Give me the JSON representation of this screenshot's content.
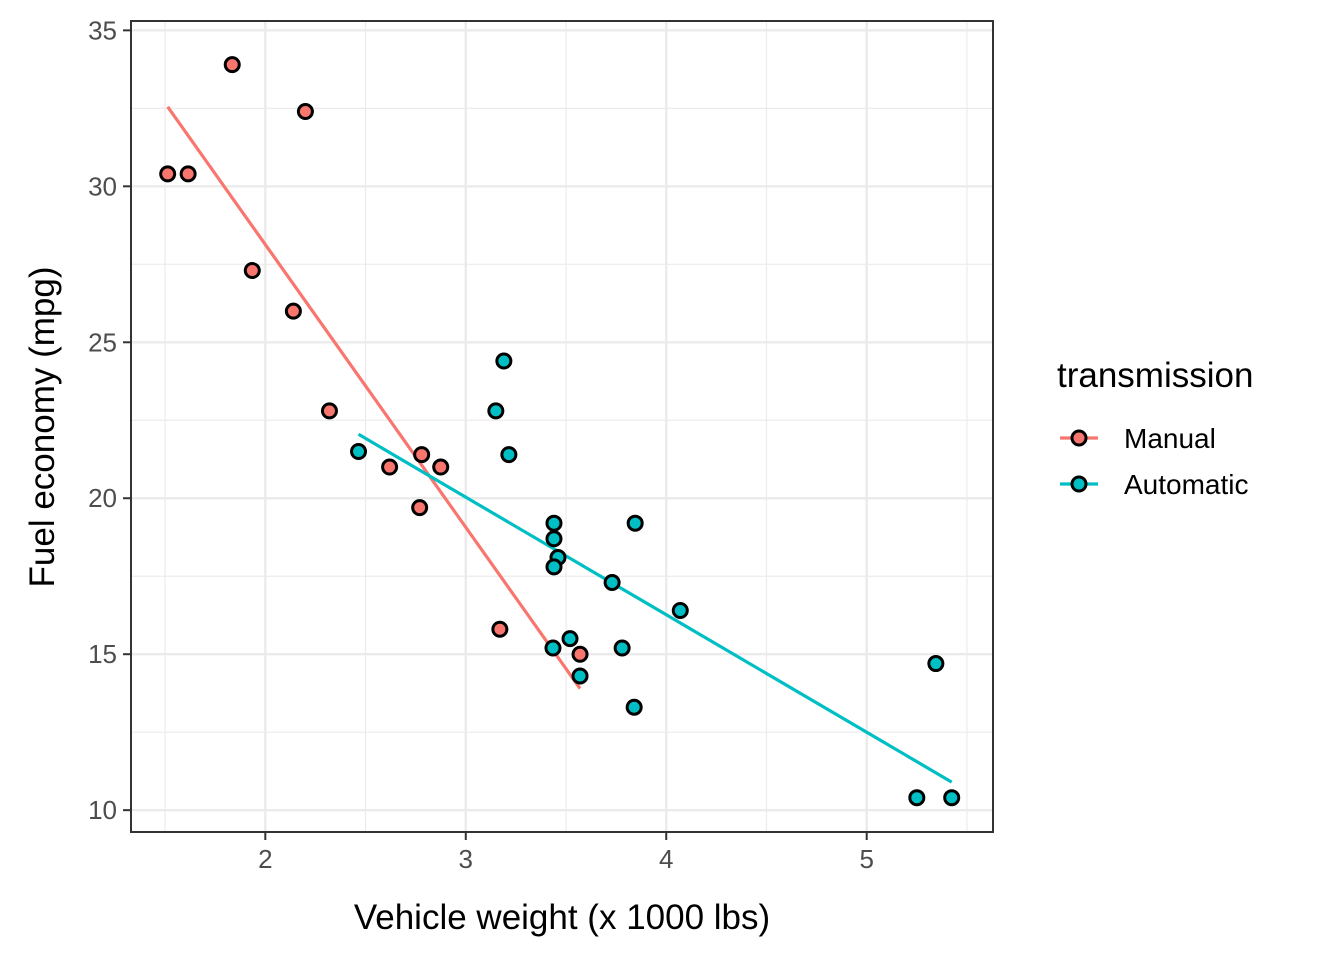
{
  "chart_data": {
    "type": "scatter",
    "xlabel": "Vehicle weight (x 1000 lbs)",
    "ylabel": "Fuel economy (mpg)",
    "xlim": [
      1.33,
      5.63
    ],
    "ylim": [
      9.3,
      35.3
    ],
    "xticks": [
      2,
      3,
      4,
      5
    ],
    "xtick_labels": [
      "2",
      "3",
      "4",
      "5"
    ],
    "yticks": [
      10,
      15,
      20,
      25,
      30,
      35
    ],
    "ytick_labels": [
      "10",
      "15",
      "20",
      "25",
      "30",
      "35"
    ],
    "grid": true,
    "legend": {
      "title": "transmission",
      "position": "right"
    },
    "series": [
      {
        "name": "Manual",
        "color": "#F8766D",
        "points": [
          [
            2.62,
            21.0
          ],
          [
            2.875,
            21.0
          ],
          [
            2.32,
            22.8
          ],
          [
            2.2,
            32.4
          ],
          [
            1.615,
            30.4
          ],
          [
            1.835,
            33.9
          ],
          [
            1.935,
            27.3
          ],
          [
            2.14,
            26.0
          ],
          [
            1.513,
            30.4
          ],
          [
            3.17,
            15.8
          ],
          [
            2.77,
            19.7
          ],
          [
            2.78,
            21.4
          ],
          [
            3.57,
            15.0
          ]
        ],
        "fit": [
          [
            1.513,
            32.55
          ],
          [
            3.57,
            13.9
          ]
        ]
      },
      {
        "name": "Automatic",
        "color": "#00BFC4",
        "points": [
          [
            3.215,
            21.4
          ],
          [
            3.44,
            18.7
          ],
          [
            3.46,
            18.1
          ],
          [
            3.57,
            14.3
          ],
          [
            3.19,
            24.4
          ],
          [
            3.15,
            22.8
          ],
          [
            3.44,
            19.2
          ],
          [
            3.44,
            17.8
          ],
          [
            4.07,
            16.4
          ],
          [
            3.73,
            17.3
          ],
          [
            3.78,
            15.2
          ],
          [
            5.25,
            10.4
          ],
          [
            5.424,
            10.4
          ],
          [
            5.345,
            14.7
          ],
          [
            2.465,
            21.5
          ],
          [
            3.52,
            15.5
          ],
          [
            3.435,
            15.2
          ],
          [
            3.84,
            13.3
          ],
          [
            3.845,
            19.2
          ]
        ],
        "fit": [
          [
            2.465,
            22.05
          ],
          [
            5.424,
            10.9
          ]
        ]
      }
    ]
  }
}
